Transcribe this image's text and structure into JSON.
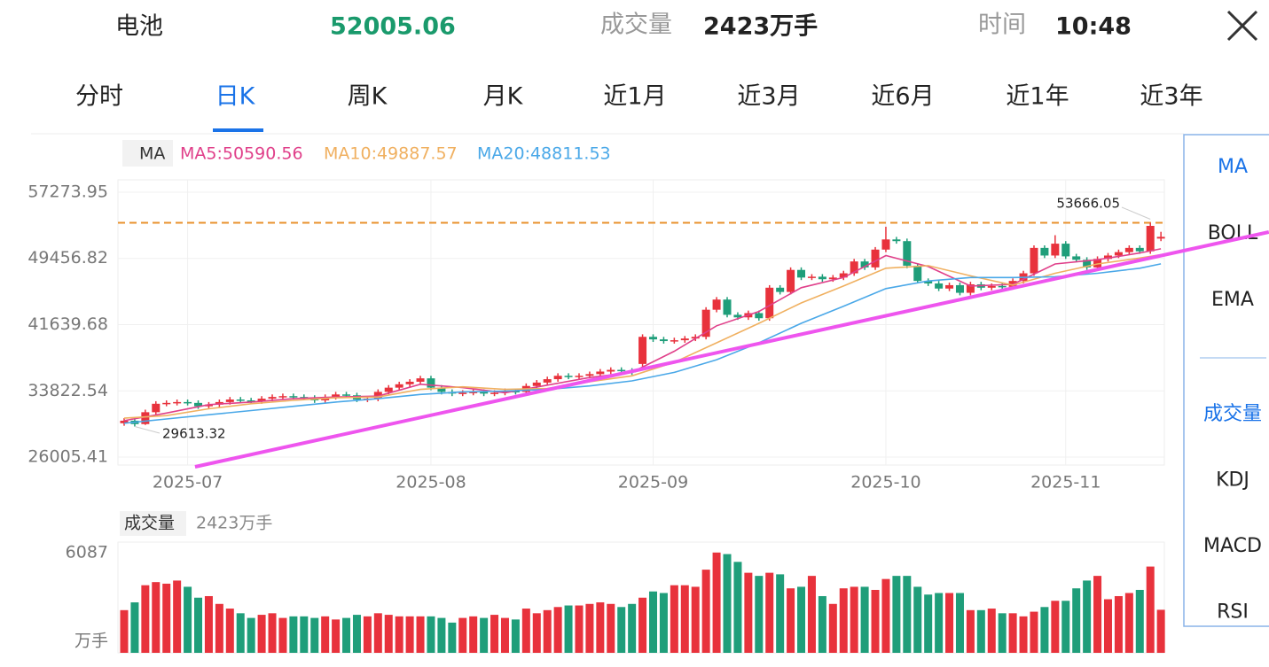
{
  "header": {
    "name": "电池",
    "price": "52005.06",
    "volume_label": "成交量",
    "volume": "2423万手",
    "time_label": "时间",
    "time": "10:48"
  },
  "tabs": [
    "分时",
    "日K",
    "周K",
    "月K",
    "近1月",
    "近3月",
    "近6月",
    "近1年",
    "近3年"
  ],
  "side_menu": {
    "overlays": [
      "MA",
      "BOLL",
      "EMA"
    ],
    "indicators": [
      "成交量",
      "KDJ",
      "MACD",
      "RSI"
    ]
  },
  "chart_data": [
    {
      "type": "candlestick",
      "legend_title": "MA",
      "categories": [
        null,
        null,
        null,
        null,
        null,
        null,
        "2025-07",
        null,
        null,
        null,
        null,
        null,
        null,
        null,
        null,
        null,
        null,
        null,
        null,
        null,
        null,
        null,
        null,
        null,
        null,
        null,
        null,
        null,
        null,
        "2025-08",
        null,
        null,
        null,
        null,
        null,
        null,
        null,
        null,
        null,
        null,
        null,
        null,
        null,
        null,
        null,
        null,
        null,
        null,
        null,
        null,
        "2025-09",
        null,
        null,
        null,
        null,
        null,
        null,
        null,
        null,
        null,
        null,
        null,
        null,
        null,
        null,
        null,
        null,
        null,
        null,
        null,
        null,
        null,
        "2025-10",
        null,
        null,
        null,
        null,
        null,
        null,
        null,
        null,
        null,
        null,
        null,
        null,
        null,
        null,
        null,
        null,
        "2025-11",
        null,
        null,
        null,
        null,
        null,
        null,
        null,
        null,
        null
      ],
      "open": [
        30000,
        30300,
        29900,
        31300,
        32300,
        32400,
        32500,
        32400,
        32000,
        32200,
        32500,
        32800,
        32700,
        32600,
        32900,
        33100,
        33200,
        33100,
        33000,
        32700,
        33100,
        33400,
        33300,
        32800,
        32900,
        33700,
        34200,
        34600,
        34900,
        35300,
        34200,
        33700,
        33500,
        33600,
        33700,
        33500,
        33600,
        33800,
        33700,
        34400,
        34800,
        35200,
        35600,
        35500,
        35600,
        35800,
        36100,
        36300,
        36200,
        37000,
        40200,
        39900,
        39700,
        39800,
        40000,
        40200,
        43400,
        44600,
        42800,
        42500,
        43000,
        42400,
        46000,
        45500,
        48100,
        47200,
        47300,
        47000,
        47200,
        47700,
        49100,
        48400,
        50500,
        51700,
        51500,
        48600,
        46800,
        46500,
        45900,
        46300,
        45400,
        46400,
        46000,
        46200,
        46100,
        46800,
        47700,
        50700,
        49800,
        51200,
        49700,
        49300,
        48400,
        49400,
        49800,
        50200,
        50700,
        50300,
        51800
      ],
      "high": [
        30600,
        30600,
        31600,
        32600,
        32700,
        32800,
        32800,
        32700,
        32500,
        32800,
        33100,
        33100,
        33000,
        33200,
        33400,
        33500,
        33500,
        33400,
        33300,
        33400,
        33700,
        33700,
        33600,
        33200,
        34000,
        34500,
        34900,
        35200,
        35600,
        35600,
        34500,
        34000,
        33900,
        34000,
        34000,
        33900,
        34100,
        34100,
        34700,
        35100,
        35500,
        35900,
        35900,
        35900,
        36100,
        36400,
        36600,
        36600,
        36500,
        40500,
        40500,
        40200,
        40100,
        40300,
        40500,
        43700,
        44900,
        44900,
        43100,
        43300,
        43300,
        46300,
        46300,
        48400,
        48400,
        47600,
        47600,
        47500,
        48000,
        49400,
        49400,
        50800,
        53200,
        52000,
        51800,
        48900,
        47100,
        46800,
        46600,
        46600,
        46700,
        46700,
        46500,
        46500,
        47100,
        48000,
        51000,
        51000,
        52200,
        51500,
        50000,
        49600,
        49700,
        50100,
        50500,
        51000,
        51000,
        53666.05,
        52600
      ],
      "low": [
        29700,
        29613.32,
        29800,
        31000,
        32000,
        32100,
        32100,
        31700,
        31700,
        31900,
        32200,
        32400,
        32300,
        32300,
        32600,
        32800,
        32800,
        32700,
        32400,
        32400,
        32800,
        33000,
        32500,
        32500,
        32600,
        33400,
        33900,
        34300,
        34600,
        33900,
        33400,
        33200,
        33200,
        33300,
        33200,
        33200,
        33300,
        33400,
        33400,
        34100,
        34500,
        34900,
        35200,
        35200,
        35300,
        35500,
        35800,
        35900,
        35700,
        36700,
        39600,
        39400,
        39400,
        39500,
        39700,
        39900,
        43100,
        42500,
        42200,
        42200,
        42100,
        42100,
        45200,
        45200,
        46900,
        46900,
        46700,
        46700,
        46900,
        47400,
        48100,
        48100,
        50200,
        51200,
        48300,
        46500,
        46200,
        45600,
        45600,
        45100,
        45100,
        45700,
        45700,
        45800,
        45800,
        46500,
        47400,
        49500,
        49500,
        49400,
        49000,
        48100,
        48100,
        49100,
        49500,
        49900,
        50000,
        50000,
        51500
      ],
      "close": [
        30300,
        29900,
        31300,
        32300,
        32400,
        32500,
        32400,
        32000,
        32200,
        32500,
        32800,
        32700,
        32600,
        32900,
        33100,
        33200,
        33100,
        33000,
        32700,
        33100,
        33400,
        33300,
        32800,
        32900,
        33700,
        34200,
        34600,
        34900,
        35300,
        34200,
        33700,
        33500,
        33600,
        33700,
        33500,
        33600,
        33800,
        33700,
        34400,
        34800,
        35200,
        35600,
        35500,
        35600,
        35800,
        36100,
        36300,
        36200,
        36000,
        40200,
        39900,
        39700,
        39800,
        40000,
        40200,
        43400,
        44600,
        42800,
        42500,
        43000,
        42400,
        46000,
        45500,
        48100,
        47200,
        47300,
        47000,
        47200,
        47700,
        49100,
        48400,
        50500,
        51700,
        51500,
        48600,
        46800,
        46500,
        45900,
        46300,
        45400,
        46400,
        46000,
        46200,
        46100,
        46800,
        47700,
        50700,
        49800,
        51200,
        49700,
        49300,
        48400,
        49400,
        49800,
        50200,
        50700,
        50300,
        53300,
        52005.06
      ],
      "up_color": "#e8323c",
      "down_color": "#1f9e7a",
      "reference_line_color": "#e8922e",
      "ylim": [
        26005.41,
        57273.95
      ],
      "yticks": [
        57273.95,
        49456.82,
        41639.68,
        33822.54,
        26005.41
      ],
      "grid": true,
      "series": [
        {
          "name": "MA5:50590.56",
          "color": "#e0408a",
          "x": [
            0,
            4,
            8,
            12,
            16,
            20,
            24,
            28,
            32,
            36,
            40,
            44,
            48,
            52,
            56,
            60,
            64,
            68,
            72,
            76,
            80,
            84,
            88,
            92,
            96,
            98
          ],
          "values": [
            30300,
            31200,
            32200,
            32500,
            32900,
            33100,
            33200,
            34600,
            34200,
            33600,
            34500,
            35400,
            36000,
            38500,
            41500,
            43200,
            46000,
            47200,
            49800,
            48500,
            46200,
            46400,
            48800,
            49300,
            50100,
            50590.56
          ]
        },
        {
          "name": "MA10:49887.57",
          "color": "#f0b060",
          "x": [
            0,
            4,
            8,
            12,
            16,
            20,
            24,
            28,
            32,
            36,
            40,
            44,
            48,
            52,
            56,
            60,
            64,
            68,
            72,
            76,
            80,
            84,
            88,
            92,
            96,
            98
          ],
          "values": [
            30600,
            30900,
            31700,
            32300,
            32700,
            33000,
            33100,
            34000,
            34300,
            34000,
            34100,
            34900,
            35600,
            37200,
            39500,
            41800,
            44200,
            46200,
            48300,
            48600,
            47400,
            46300,
            47700,
            48800,
            49500,
            49887.57
          ]
        },
        {
          "name": "MA20:48811.53",
          "color": "#4aa8e8",
          "x": [
            0,
            4,
            8,
            12,
            16,
            20,
            24,
            28,
            32,
            36,
            40,
            44,
            48,
            52,
            56,
            60,
            64,
            68,
            72,
            76,
            80,
            84,
            88,
            92,
            96,
            98
          ],
          "values": [
            30000,
            30500,
            31000,
            31500,
            32000,
            32500,
            32900,
            33400,
            33700,
            33800,
            34000,
            34400,
            35000,
            36000,
            37500,
            39500,
            41800,
            43800,
            45900,
            46800,
            47200,
            47200,
            47300,
            47700,
            48300,
            48811.53
          ]
        }
      ],
      "trendline": {
        "color": "#ee55ee",
        "x": [
          6.7,
          108.2
        ],
        "values": [
          24855,
          52568
        ]
      }
    },
    {
      "type": "bar",
      "title": "成交量",
      "subtitle": "2423万手",
      "values": [
        2400,
        2900,
        4000,
        4200,
        4100,
        4300,
        3900,
        3200,
        3300,
        2800,
        2500,
        2200,
        1900,
        2100,
        2200,
        1900,
        2000,
        2000,
        1900,
        2000,
        1800,
        1900,
        2100,
        2000,
        2200,
        2100,
        2000,
        2000,
        2000,
        2000,
        1900,
        1600,
        1900,
        2000,
        1900,
        2100,
        1900,
        1800,
        2500,
        2200,
        2400,
        2600,
        2700,
        2700,
        2800,
        2900,
        2800,
        2600,
        2800,
        3200,
        3600,
        3500,
        4000,
        4000,
        3900,
        5000,
        6100,
        6000,
        5500,
        4800,
        4600,
        4800,
        4700,
        3800,
        3900,
        4600,
        3300,
        2800,
        3800,
        3900,
        3900,
        3700,
        4400,
        4600,
        4600,
        3900,
        3400,
        3500,
        3500,
        3500,
        2400,
        2400,
        2500,
        2200,
        2200,
        2000,
        2300,
        2600,
        3000,
        3000,
        3800,
        4300,
        4600,
        3100,
        3300,
        3500,
        3700,
        5200,
        2423
      ],
      "ylim": [
        0,
        6087
      ],
      "yticks": [
        {
          "value": 0,
          "label": "万手"
        },
        6087
      ]
    }
  ]
}
